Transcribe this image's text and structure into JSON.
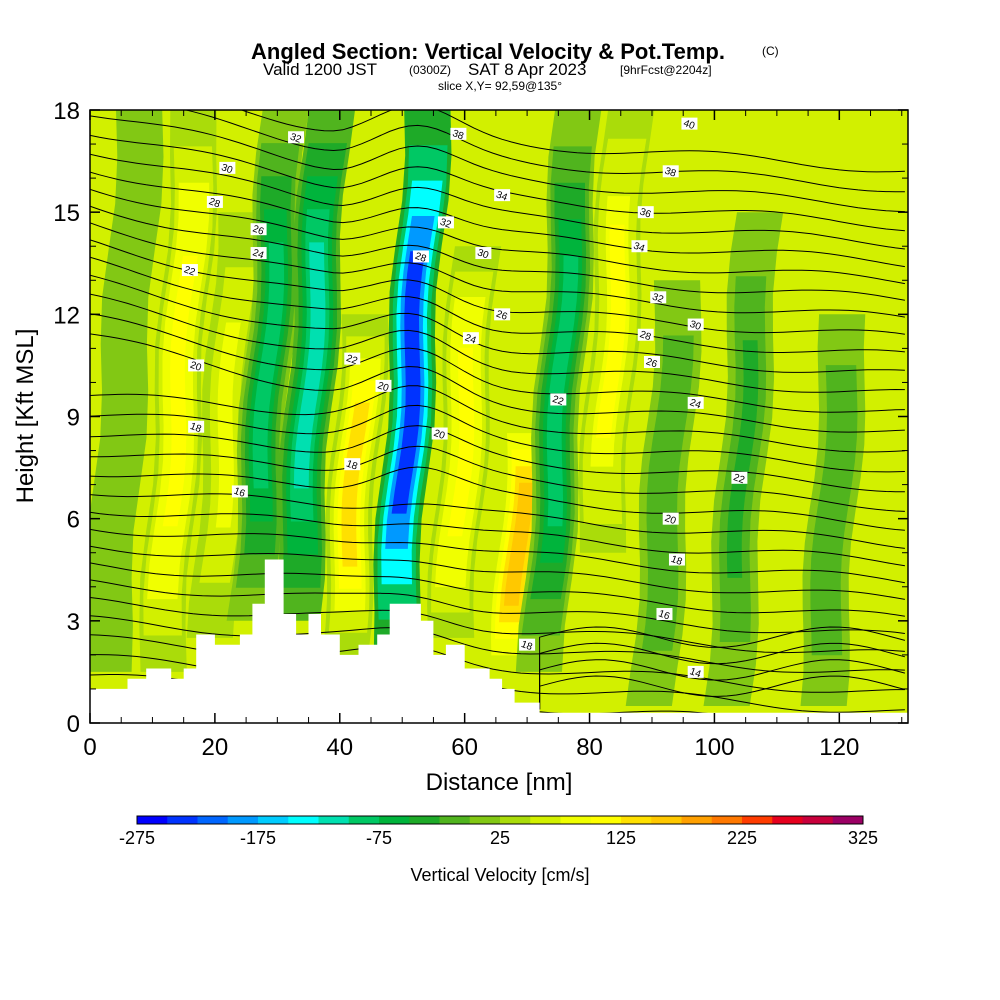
{
  "chart_data": {
    "type": "heatmap",
    "title": "Angled Section: Vertical Velocity & Pot.Temp.",
    "title_unit": "(C)",
    "subtitle_valid": "Valid 1200 JST",
    "subtitle_utc": "(0300Z)",
    "subtitle_date": "SAT 8 Apr 2023",
    "subtitle_fcst": "[9hrFcst@2204z]",
    "slice_label": "slice X,Y= 92,59@135°",
    "xlabel": "Distance [nm]",
    "ylabel": "Height [Kft MSL]",
    "xlim": [
      0,
      131
    ],
    "ylim": [
      0,
      18
    ],
    "x_ticks": [
      0,
      20,
      40,
      60,
      80,
      100,
      120
    ],
    "x_tick_labels": [
      "0",
      "20",
      "40",
      "60",
      "80",
      "100",
      "120"
    ],
    "y_ticks": [
      0,
      3,
      6,
      9,
      12,
      15,
      18
    ],
    "y_tick_labels": [
      "0",
      "3",
      "6",
      "9",
      "12",
      "15",
      "18"
    ],
    "grid": false,
    "colorbar": {
      "title": "Vertical Velocity [cm/s]",
      "min": -275,
      "max": 325,
      "step": 25,
      "tick_values": [
        -275,
        -175,
        -75,
        25,
        125,
        225,
        325
      ],
      "tick_labels": [
        "-275",
        "-175",
        "-75",
        "25",
        "125",
        "225",
        "325"
      ],
      "colors": [
        "#0000ff",
        "#0033ff",
        "#0066ff",
        "#0099ff",
        "#00ccff",
        "#00ffff",
        "#00e0b0",
        "#00c864",
        "#00b43c",
        "#1eaa28",
        "#50b41e",
        "#82c814",
        "#aadc0a",
        "#d2f000",
        "#f0ff00",
        "#ffff00",
        "#ffe000",
        "#ffc800",
        "#ffa000",
        "#ff7800",
        "#ff3c00",
        "#e6001e",
        "#c8003c",
        "#9b0064"
      ]
    },
    "velocity_features": [
      {
        "x": 5,
        "z_low": 1.5,
        "z_high": 18,
        "w": 15,
        "shape": "band"
      },
      {
        "x": 14,
        "z_low": 1.5,
        "z_high": 18,
        "w": 110,
        "shape": "band"
      },
      {
        "x": 22,
        "z_low": 2.5,
        "z_high": 15,
        "w": 75,
        "shape": "band"
      },
      {
        "x": 28,
        "z_low": 3,
        "z_high": 18,
        "w": -100,
        "shape": "band"
      },
      {
        "x": 35,
        "z_low": 3,
        "z_high": 18,
        "w": -110,
        "shape": "band"
      },
      {
        "x": 43,
        "z_low": 2,
        "z_high": 12,
        "w": 130,
        "shape": "band"
      },
      {
        "x": 51,
        "z_low": 2,
        "z_high": 18,
        "w": -240,
        "shape": "band"
      },
      {
        "x": 60,
        "z_low": 2.5,
        "z_high": 14,
        "w": 110,
        "shape": "band"
      },
      {
        "x": 70,
        "z_low": 1.5,
        "z_high": 9,
        "w": 160,
        "shape": "band"
      },
      {
        "x": 75,
        "z_low": 1.5,
        "z_high": 18,
        "w": -90,
        "shape": "band"
      },
      {
        "x": 83,
        "z_low": 5,
        "z_high": 18,
        "w": 100,
        "shape": "band"
      },
      {
        "x": 93,
        "z_low": 0.5,
        "z_high": 13,
        "w": -25,
        "shape": "band"
      },
      {
        "x": 105,
        "z_low": 0.5,
        "z_high": 15,
        "w": -35,
        "shape": "band"
      },
      {
        "x": 120,
        "z_low": 0.5,
        "z_high": 12,
        "w": -25,
        "shape": "band"
      }
    ],
    "terrain": [
      [
        0,
        1
      ],
      [
        6,
        1
      ],
      [
        6,
        1.3
      ],
      [
        9,
        1.3
      ],
      [
        9,
        1.6
      ],
      [
        13,
        1.6
      ],
      [
        13,
        1.3
      ],
      [
        15,
        1.3
      ],
      [
        15,
        1.6
      ],
      [
        17,
        1.6
      ],
      [
        17,
        2.6
      ],
      [
        20,
        2.6
      ],
      [
        20,
        2.3
      ],
      [
        24,
        2.3
      ],
      [
        24,
        2.6
      ],
      [
        26,
        2.6
      ],
      [
        26,
        3.5
      ],
      [
        28,
        3.5
      ],
      [
        28,
        4.8
      ],
      [
        31,
        4.8
      ],
      [
        31,
        3.2
      ],
      [
        33,
        3.2
      ],
      [
        33,
        2.6
      ],
      [
        35,
        2.6
      ],
      [
        35,
        3.2
      ],
      [
        37,
        3.2
      ],
      [
        37,
        2.6
      ],
      [
        40,
        2.6
      ],
      [
        40,
        2.0
      ],
      [
        43,
        2.0
      ],
      [
        43,
        2.3
      ],
      [
        46,
        2.3
      ],
      [
        46,
        2.6
      ],
      [
        48,
        2.6
      ],
      [
        48,
        3.5
      ],
      [
        53,
        3.5
      ],
      [
        53,
        3.0
      ],
      [
        55,
        3.0
      ],
      [
        55,
        2.0
      ],
      [
        57,
        2.0
      ],
      [
        57,
        2.3
      ],
      [
        60,
        2.3
      ],
      [
        60,
        1.6
      ],
      [
        64,
        1.6
      ],
      [
        64,
        1.3
      ],
      [
        66,
        1.3
      ],
      [
        66,
        1.0
      ],
      [
        68,
        1.0
      ],
      [
        68,
        0.6
      ],
      [
        72,
        0.6
      ],
      [
        72,
        0.3
      ],
      [
        131,
        0.3
      ]
    ],
    "contour_label_values": [
      "40",
      "38",
      "36",
      "34",
      "32",
      "30",
      "28",
      "26",
      "24",
      "22",
      "20",
      "18",
      "16",
      "14"
    ],
    "contour_labels": [
      {
        "text": "40",
        "x": 96,
        "z": 17.6
      },
      {
        "text": "38",
        "x": 59,
        "z": 17.3
      },
      {
        "text": "38",
        "x": 93,
        "z": 16.2
      },
      {
        "text": "36",
        "x": 89,
        "z": 15.0
      },
      {
        "text": "34",
        "x": 66,
        "z": 15.5
      },
      {
        "text": "34",
        "x": 88,
        "z": 14.0
      },
      {
        "text": "32",
        "x": 33,
        "z": 17.2
      },
      {
        "text": "32",
        "x": 57,
        "z": 14.7
      },
      {
        "text": "32",
        "x": 91,
        "z": 12.5
      },
      {
        "text": "30",
        "x": 22,
        "z": 16.3
      },
      {
        "text": "30",
        "x": 63,
        "z": 13.8
      },
      {
        "text": "30",
        "x": 97,
        "z": 11.7
      },
      {
        "text": "28",
        "x": 20,
        "z": 15.3
      },
      {
        "text": "28",
        "x": 53,
        "z": 13.7
      },
      {
        "text": "28",
        "x": 89,
        "z": 11.4
      },
      {
        "text": "26",
        "x": 27,
        "z": 14.5
      },
      {
        "text": "26",
        "x": 66,
        "z": 12.0
      },
      {
        "text": "26",
        "x": 90,
        "z": 10.6
      },
      {
        "text": "24",
        "x": 27,
        "z": 13.8
      },
      {
        "text": "24",
        "x": 61,
        "z": 11.3
      },
      {
        "text": "24",
        "x": 97,
        "z": 9.4
      },
      {
        "text": "22",
        "x": 16,
        "z": 13.3
      },
      {
        "text": "22",
        "x": 42,
        "z": 10.7
      },
      {
        "text": "22",
        "x": 75,
        "z": 9.5
      },
      {
        "text": "22",
        "x": 104,
        "z": 7.2
      },
      {
        "text": "20",
        "x": 17,
        "z": 10.5
      },
      {
        "text": "20",
        "x": 47,
        "z": 9.9
      },
      {
        "text": "20",
        "x": 56,
        "z": 8.5
      },
      {
        "text": "20",
        "x": 93,
        "z": 6.0
      },
      {
        "text": "18",
        "x": 17,
        "z": 8.7
      },
      {
        "text": "18",
        "x": 42,
        "z": 7.6
      },
      {
        "text": "18",
        "x": 94,
        "z": 4.8
      },
      {
        "text": "18",
        "x": 70,
        "z": 2.3
      },
      {
        "text": "16",
        "x": 24,
        "z": 6.8
      },
      {
        "text": "16",
        "x": 92,
        "z": 3.2
      },
      {
        "text": "14",
        "x": 97,
        "z": 1.5
      }
    ]
  }
}
